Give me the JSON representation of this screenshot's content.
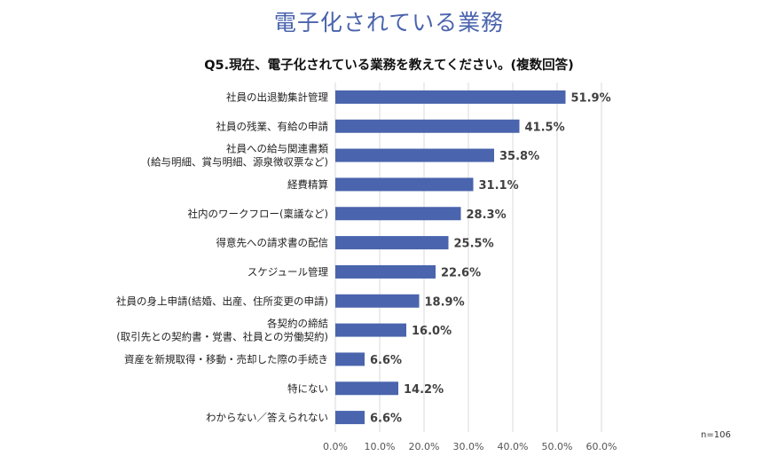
{
  "page_title": "電子化されている業務",
  "chart_data": {
    "type": "bar",
    "orientation": "horizontal",
    "title": "Q5.現在、電子化されている業務を教えてください。(複数回答)",
    "categories": [
      [
        "社員の出退勤集計管理"
      ],
      [
        "社員の残業、有給の申請"
      ],
      [
        "社員への給与関連書類",
        "(給与明細、賞与明細、源泉徴収票など)"
      ],
      [
        "経費精算"
      ],
      [
        "社内のワークフロー(稟議など)"
      ],
      [
        "得意先への請求書の配信"
      ],
      [
        "スケジュール管理"
      ],
      [
        "社員の身上申請(結婚、出産、住所変更の申請)"
      ],
      [
        "各契約の締結",
        "(取引先との契約書・覚書、社員との労働契約)"
      ],
      [
        "資産を新規取得・移動・売却した際の手続き"
      ],
      [
        "特にない"
      ],
      [
        "わからない／答えられない"
      ]
    ],
    "values": [
      51.9,
      41.5,
      35.8,
      31.1,
      28.3,
      25.5,
      22.6,
      18.9,
      16.0,
      6.6,
      14.2,
      6.6
    ],
    "value_labels": [
      "51.9%",
      "41.5%",
      "35.8%",
      "31.1%",
      "28.3%",
      "25.5%",
      "22.6%",
      "18.9%",
      "16.0%",
      "6.6%",
      "14.2%",
      "6.6%"
    ],
    "xlim": [
      0,
      60
    ],
    "x_ticks": [
      0,
      10,
      20,
      30,
      40,
      50,
      60
    ],
    "x_tick_labels": [
      "0.0%",
      "10.0%",
      "20.0%",
      "30.0%",
      "40.0%",
      "50.0%",
      "60.0%"
    ],
    "grid": true,
    "bar_color": "#4a64ad",
    "note": "n=106"
  }
}
